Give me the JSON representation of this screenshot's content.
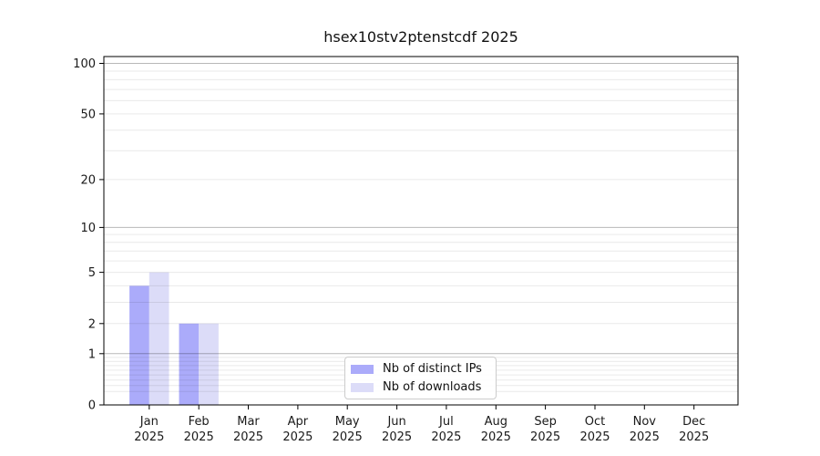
{
  "chart_data": {
    "type": "bar",
    "title": "hsex10stv2ptenstcdf 2025",
    "categories": [
      "Jan",
      "Feb",
      "Mar",
      "Apr",
      "May",
      "Jun",
      "Jul",
      "Aug",
      "Sep",
      "Oct",
      "Nov",
      "Dec"
    ],
    "category_year": "2025",
    "series": [
      {
        "name": "Nb of distinct IPs",
        "color": "#ababfa",
        "values": [
          4,
          2,
          0,
          0,
          0,
          0,
          0,
          0,
          0,
          0,
          0,
          0
        ]
      },
      {
        "name": "Nb of downloads",
        "color": "#dcdcf8",
        "values": [
          5,
          2,
          0,
          0,
          0,
          0,
          0,
          0,
          0,
          0,
          0,
          0
        ]
      }
    ],
    "yscale": "log1p",
    "yticks": [
      0,
      1,
      2,
      5,
      10,
      20,
      50,
      100
    ],
    "ylim": [
      0,
      110
    ],
    "xlabel": "",
    "ylabel": "",
    "grid": "horizontal",
    "legend_position": "lower center",
    "colors": {
      "axis": "#000000",
      "tick_label": "#1a1a1a",
      "grid_minor": "rgba(0,0,0,0.085)",
      "grid_major": "rgba(0,0,0,0.28)",
      "background": "#ffffff"
    }
  }
}
